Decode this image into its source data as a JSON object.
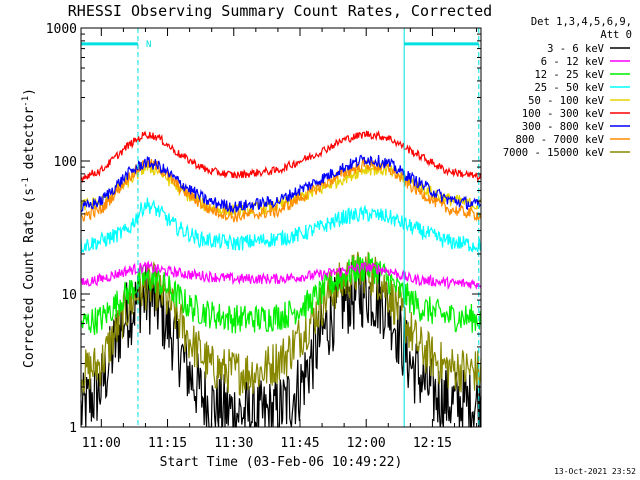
{
  "chart_data": {
    "type": "line",
    "title": "RHESSI Observing Summary Count Rates, Corrected",
    "xlabel": "Start Time (03-Feb-06 10:49:22)",
    "ylabel_prefix": "Corrected Count Rate (s",
    "ylabel_mid": " detector",
    "ylabel_suffix": ")",
    "ylabel_exp": "-1",
    "y_scale": "log",
    "ylim": [
      1,
      1000
    ],
    "xlim_minutes": [
      -4.6,
      86.0
    ],
    "yticks": [
      "1",
      "10",
      "100",
      "1000"
    ],
    "xticks": [
      {
        "label": "11:00",
        "min": 0
      },
      {
        "label": "11:15",
        "min": 15
      },
      {
        "label": "11:30",
        "min": 30
      },
      {
        "label": "11:45",
        "min": 45
      },
      {
        "label": "12:00",
        "min": 60
      },
      {
        "label": "12:15",
        "min": 75
      }
    ],
    "legend_header": [
      "Det 1,3,4,5,6,9,",
      "Att 0"
    ],
    "legend_position": "right",
    "series": [
      {
        "name": "3 - 6 keV",
        "color": "#000000",
        "x": [
          -4.6,
          0,
          5,
          9,
          12,
          16,
          20,
          24,
          30,
          36,
          40,
          45,
          50,
          54,
          60,
          65,
          70,
          75,
          80,
          86
        ],
        "y": [
          1.3,
          2.0,
          6.5,
          9.5,
          9.0,
          5.0,
          2.5,
          1.5,
          1.3,
          1.2,
          1.3,
          2.0,
          5.0,
          8.5,
          10.5,
          8.0,
          3.0,
          1.8,
          1.5,
          1.5
        ]
      },
      {
        "name": "6 - 12 keV",
        "color": "#ff00ff",
        "x": [
          -4.6,
          0,
          6,
          10,
          14,
          20,
          30,
          40,
          50,
          60,
          65,
          70,
          80,
          86
        ],
        "y": [
          12,
          13,
          15,
          16,
          15,
          14,
          13,
          13,
          14,
          16,
          15,
          13,
          12,
          12
        ]
      },
      {
        "name": "12 - 25 keV",
        "color": "#00ee00",
        "x": [
          -4.6,
          0,
          5,
          9,
          12,
          16,
          20,
          25,
          30,
          36,
          42,
          47,
          52,
          57,
          60,
          63,
          67,
          72,
          78,
          86
        ],
        "y": [
          6.0,
          6.5,
          9.5,
          13,
          13,
          10.5,
          8.0,
          7.0,
          6.5,
          6.5,
          7.0,
          8.5,
          12,
          15,
          16,
          15,
          11,
          8.0,
          6.8,
          6.5
        ]
      },
      {
        "name": "25 - 50 keV",
        "color": "#00ffff",
        "x": [
          -4.6,
          0,
          6,
          10,
          13,
          17,
          22,
          30,
          40,
          45,
          50,
          55,
          60,
          65,
          70,
          78,
          86
        ],
        "y": [
          23,
          25,
          30,
          48,
          42,
          32,
          26,
          24,
          26,
          28,
          32,
          38,
          40,
          38,
          32,
          25,
          23
        ]
      },
      {
        "name": "50 - 100 keV",
        "color": "#e6d200",
        "x": [
          -4.6,
          0,
          6,
          10,
          13,
          18,
          24,
          30,
          40,
          48,
          55,
          60,
          65,
          70,
          78,
          86
        ],
        "y": [
          46,
          50,
          70,
          90,
          85,
          60,
          45,
          42,
          46,
          58,
          75,
          88,
          85,
          70,
          52,
          46
        ]
      },
      {
        "name": "100 - 300 keV",
        "color": "#ff0000",
        "x": [
          -4.6,
          0,
          6,
          10,
          13,
          18,
          24,
          30,
          40,
          48,
          55,
          60,
          65,
          70,
          78,
          86
        ],
        "y": [
          75,
          85,
          130,
          160,
          150,
          110,
          85,
          78,
          85,
          110,
          145,
          160,
          150,
          120,
          85,
          75
        ]
      },
      {
        "name": "300 - 800 keV",
        "color": "#0000ff",
        "x": [
          -4.6,
          0,
          6,
          10,
          13,
          18,
          24,
          30,
          40,
          48,
          55,
          60,
          65,
          70,
          78,
          86
        ],
        "y": [
          44,
          50,
          80,
          98,
          92,
          68,
          50,
          45,
          50,
          68,
          90,
          105,
          96,
          75,
          52,
          46
        ]
      },
      {
        "name": "800 - 7000 keV",
        "color": "#ff8c00",
        "x": [
          -4.6,
          0,
          6,
          10,
          13,
          18,
          24,
          30,
          40,
          48,
          55,
          60,
          65,
          70,
          78,
          86
        ],
        "y": [
          38,
          43,
          75,
          97,
          90,
          62,
          44,
          38,
          42,
          60,
          82,
          95,
          88,
          65,
          44,
          39
        ]
      },
      {
        "name": "7000 - 15000 keV",
        "color": "#888800",
        "x": [
          -4.6,
          0,
          5,
          9,
          12,
          16,
          20,
          25,
          30,
          36,
          42,
          47,
          52,
          57,
          60,
          63,
          67,
          72,
          78,
          86
        ],
        "y": [
          2.5,
          3.0,
          7.0,
          11,
          11.5,
          8.0,
          4.5,
          2.8,
          2.6,
          2.6,
          3.5,
          6.0,
          10.5,
          14,
          15,
          13,
          8.0,
          4.0,
          2.8,
          2.6
        ]
      }
    ],
    "vlines_minutes": [
      -4.6,
      8.3,
      68.6,
      85.5
    ],
    "annotation_label": "N",
    "annotation_bars": [
      [
        -4.6,
        8.3
      ],
      [
        68.6,
        85.5
      ]
    ],
    "annotation_level": 760,
    "annotation_color": "#00e0e0",
    "grid": false,
    "timestamp": "13-Oct-2021 23:52"
  }
}
